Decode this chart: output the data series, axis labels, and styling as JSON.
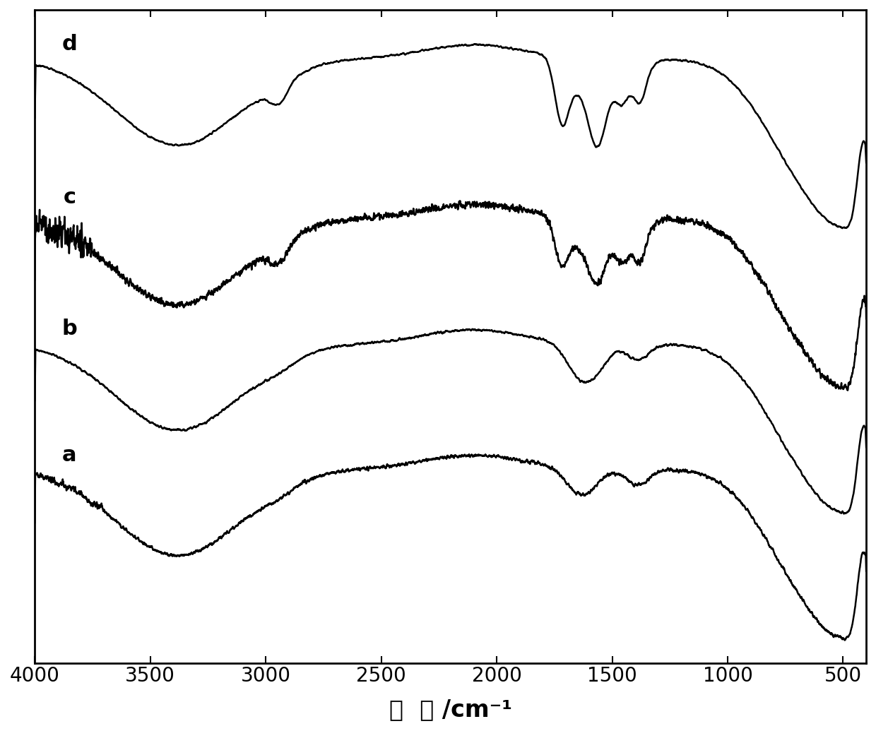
{
  "xlabel": "波  数 /cm⁻¹",
  "xlabel_fontsize": 24,
  "xlim": [
    4000,
    400
  ],
  "xticks": [
    4000,
    3500,
    3000,
    2500,
    2000,
    1500,
    1000,
    500
  ],
  "tick_fontsize": 20,
  "line_color": "#000000",
  "line_width": 1.8,
  "label_fontsize": 22,
  "curve_labels": [
    "d",
    "c",
    "b",
    "a"
  ],
  "background_color": "#ffffff",
  "figsize": [
    12.4,
    10.35
  ],
  "dpi": 100
}
